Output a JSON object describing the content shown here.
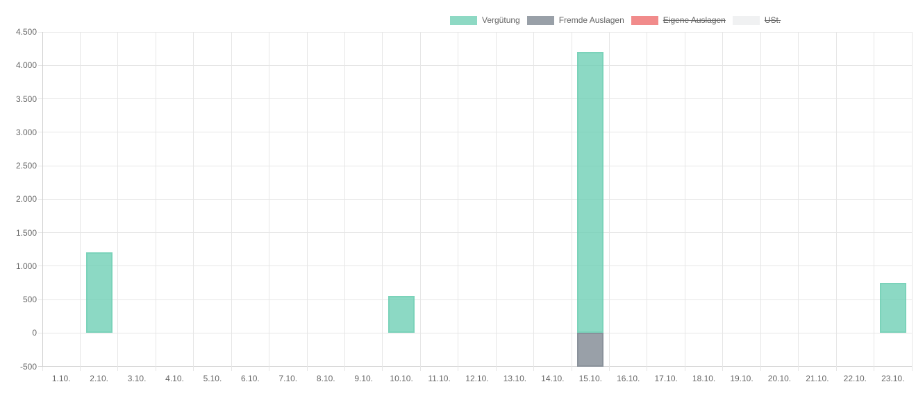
{
  "chart_data": {
    "type": "bar",
    "stacked": true,
    "title": "",
    "xlabel": "",
    "ylabel": "",
    "grid": true,
    "legend_position": "top",
    "categories": [
      "1.10.",
      "2.10.",
      "3.10.",
      "4.10.",
      "5.10.",
      "6.10.",
      "7.10.",
      "8.10.",
      "9.10.",
      "10.10.",
      "11.10.",
      "12.10.",
      "13.10.",
      "14.10.",
      "15.10.",
      "16.10.",
      "17.10.",
      "18.10.",
      "19.10.",
      "20.10.",
      "21.10.",
      "22.10.",
      "23.10."
    ],
    "series": [
      {
        "name": "Vergütung",
        "hidden": false,
        "color": "#8ed9c4",
        "bar_fill": "rgba(102,204,176,0.75)",
        "bar_border": "rgba(102,204,176,0.45)",
        "values": [
          0,
          1200,
          0,
          0,
          0,
          0,
          0,
          0,
          0,
          550,
          0,
          0,
          0,
          0,
          4200,
          0,
          0,
          0,
          0,
          0,
          0,
          0,
          750
        ]
      },
      {
        "name": "Fremde Auslagen",
        "hidden": false,
        "color": "#99a0a8",
        "bar_fill": "rgba(119,128,139,0.75)",
        "bar_border": "rgba(119,128,139,0.45)",
        "values": [
          0,
          0,
          0,
          0,
          0,
          0,
          0,
          0,
          0,
          0,
          0,
          0,
          0,
          0,
          -500,
          0,
          0,
          0,
          0,
          0,
          0,
          0,
          0
        ]
      },
      {
        "name": "Eigene Auslagen",
        "hidden": true,
        "color": "#f18b8b",
        "bar_fill": "rgba(235,90,90,0.75)",
        "bar_border": "rgba(235,90,90,0.45)",
        "values": [
          0,
          0,
          0,
          0,
          0,
          0,
          0,
          0,
          0,
          0,
          0,
          0,
          0,
          0,
          0,
          0,
          0,
          0,
          0,
          0,
          0,
          0,
          0
        ]
      },
      {
        "name": "USt.",
        "hidden": true,
        "color": "#f0f1f2",
        "bar_fill": "rgba(225,227,229,0.75)",
        "bar_border": "rgba(225,227,229,0.45)",
        "values": [
          0,
          0,
          0,
          0,
          0,
          0,
          0,
          0,
          0,
          0,
          0,
          0,
          0,
          0,
          0,
          0,
          0,
          0,
          0,
          0,
          0,
          0,
          0
        ]
      }
    ],
    "ylim": [
      -500,
      4500
    ],
    "y_ticks": [
      {
        "value": 4500,
        "label": "4.500"
      },
      {
        "value": 4000,
        "label": "4.000"
      },
      {
        "value": 3500,
        "label": "3.500"
      },
      {
        "value": 3000,
        "label": "3.000"
      },
      {
        "value": 2500,
        "label": "2.500"
      },
      {
        "value": 2000,
        "label": "2.000"
      },
      {
        "value": 1500,
        "label": "1.500"
      },
      {
        "value": 1000,
        "label": "1.000"
      },
      {
        "value": 500,
        "label": "500"
      },
      {
        "value": 0,
        "label": "0"
      },
      {
        "value": -500,
        "label": "-500"
      }
    ]
  },
  "style": {
    "grid_color": "#e6e6e6",
    "axis_border_color": "#cfcfcf",
    "tick_label_color": "#666666",
    "legend_text_color": "#666666"
  }
}
